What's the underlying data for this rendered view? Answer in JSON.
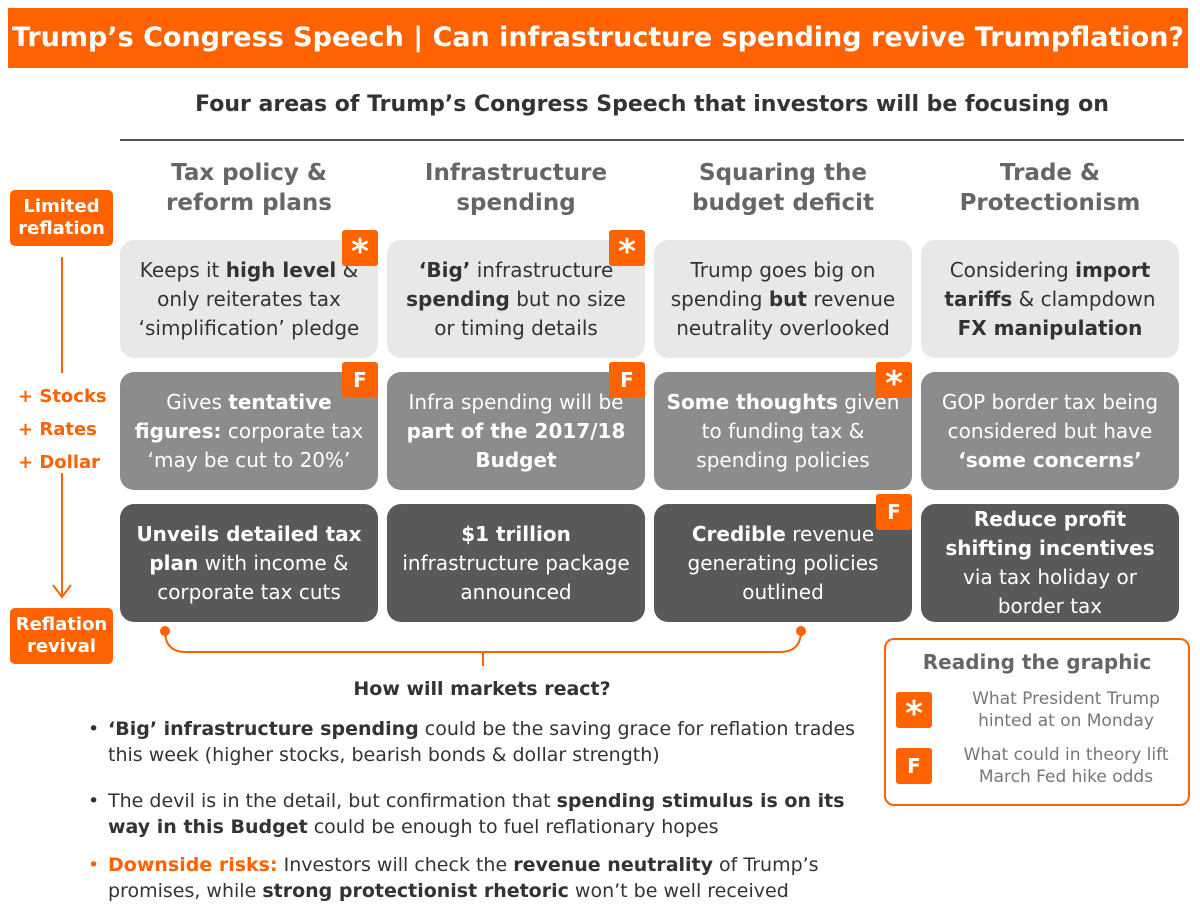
{
  "banner": {
    "title": "Trump’s Congress Speech | Can infrastructure spending revive Trumpflation?",
    "color": "#ff6200"
  },
  "subtitle": "Four areas of Trump’s Congress Speech that investors will be focusing on",
  "side": {
    "top_label": "Limited\nreflation",
    "bottom_label": "Reflation\nrevival",
    "plus_items": [
      "+ Stocks",
      "+ Rates",
      "+ Dollar"
    ]
  },
  "columns": [
    {
      "header": "Tax policy &\nreform plans"
    },
    {
      "header": "Infrastructure\nspending"
    },
    {
      "header": "Squaring the\nbudget deficit"
    },
    {
      "header": "Trade &\nProtectionism"
    }
  ],
  "rows": [
    [
      {
        "parts": [
          {
            "t": "Keeps it "
          },
          {
            "t": "high level",
            "b": true
          },
          {
            "t": " & only reiterates tax ‘simplification’ pledge"
          }
        ],
        "badge": "*"
      },
      {
        "parts": [
          {
            "t": "‘Big’",
            "b": true
          },
          {
            "t": " infrastructure "
          },
          {
            "t": "spending",
            "b": true
          },
          {
            "t": " but no size or timing details"
          }
        ],
        "badge": "*"
      },
      {
        "parts": [
          {
            "t": "Trump goes big on spending "
          },
          {
            "t": "but",
            "b": true
          },
          {
            "t": " revenue neutrality overlooked"
          }
        ],
        "badge": ""
      },
      {
        "parts": [
          {
            "t": "Considering "
          },
          {
            "t": "import tariffs",
            "b": true
          },
          {
            "t": " & clampdown "
          },
          {
            "t": "FX manipulation",
            "b": true
          }
        ],
        "badge": ""
      }
    ],
    [
      {
        "parts": [
          {
            "t": "Gives "
          },
          {
            "t": "tentative figures:",
            "b": true
          },
          {
            "t": " corporate tax ‘may be cut to 20%’"
          }
        ],
        "badge": "F"
      },
      {
        "parts": [
          {
            "t": "Infra spending will be "
          },
          {
            "t": "part of the 2017/18 Budget",
            "b": true
          }
        ],
        "badge": "F"
      },
      {
        "parts": [
          {
            "t": "Some thoughts",
            "b": true
          },
          {
            "t": " given to funding tax & spending policies"
          }
        ],
        "badge": "*"
      },
      {
        "parts": [
          {
            "t": "GOP border tax being considered but have "
          },
          {
            "t": "‘some concerns’",
            "b": true
          }
        ],
        "badge": ""
      }
    ],
    [
      {
        "parts": [
          {
            "t": "Unveils detailed tax plan",
            "b": true
          },
          {
            "t": " with income & corporate tax cuts"
          }
        ],
        "badge": ""
      },
      {
        "parts": [
          {
            "t": "$1 trillion",
            "b": true
          },
          {
            "t": " infrastructure package announced"
          }
        ],
        "badge": ""
      },
      {
        "parts": [
          {
            "t": "Credible",
            "b": true
          },
          {
            "t": " revenue generating policies outlined"
          }
        ],
        "badge": "F"
      },
      {
        "parts": [
          {
            "t": "Reduce profit shifting incentives",
            "b": true
          },
          {
            "t": " via tax holiday or border tax"
          }
        ],
        "badge": ""
      }
    ]
  ],
  "reaction": {
    "title": "How will markets react?",
    "bullets": [
      {
        "parts": [
          {
            "t": "‘Big’ infrastructure spending",
            "b": true
          },
          {
            "t": " could be the saving grace for reflation trades this week (higher stocks, bearish bonds & dollar strength)"
          }
        ]
      },
      {
        "parts": [
          {
            "t": "The devil is in the detail, but confirmation that "
          },
          {
            "t": "spending stimulus is on its way in this Budget",
            "b": true
          },
          {
            "t": " could be enough to fuel reflationary hopes"
          }
        ]
      },
      {
        "orange": true,
        "parts": [
          {
            "t": "Downside risks:",
            "b": true,
            "o": true
          },
          {
            "t": " Investors will check the "
          },
          {
            "t": "revenue neutrality",
            "b": true
          },
          {
            "t": " of Trump’s promises, while "
          },
          {
            "t": "strong protectionist rhetoric",
            "b": true
          },
          {
            "t": " won’t be well received"
          }
        ]
      }
    ]
  },
  "legend": {
    "title": "Reading the graphic",
    "items": [
      {
        "badge": "*",
        "text": "What President Trump\nhinted at on Monday"
      },
      {
        "badge": "F",
        "text": "What could in theory lift\nMarch Fed hike odds"
      }
    ]
  }
}
